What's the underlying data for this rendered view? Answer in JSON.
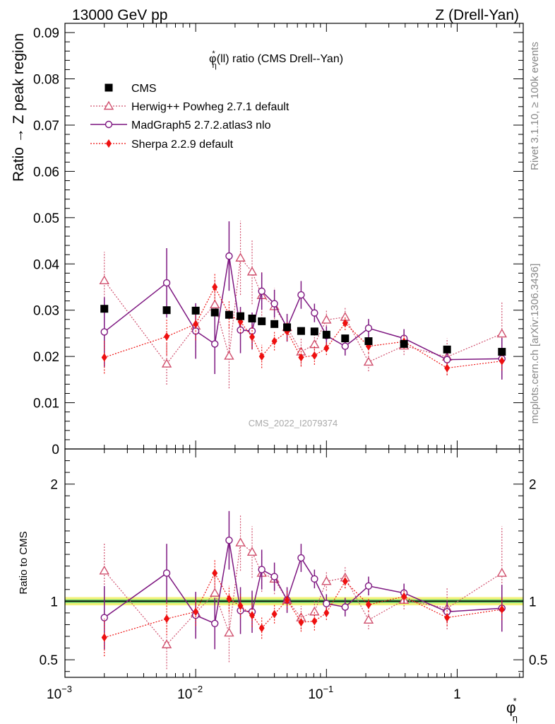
{
  "header": {
    "left": "13000 GeV pp",
    "right": "Z (Drell-Yan)"
  },
  "side_labels": {
    "rivet": "Rivet 3.1.10, ≥ 100k events",
    "mcplots": "mcplots.cern.ch [arXiv:1306.3436]"
  },
  "watermark": "CMS_2022_I2079374",
  "colors": {
    "cms": "#000000",
    "herwig": "#d0506e",
    "madgraph": "#7d1680",
    "sherpa": "#ee1010",
    "band_inner": "#6fd36f",
    "band_outer": "#f2f27a"
  },
  "chart_data": [
    {
      "type": "scatter",
      "title": "φ*η(ll) ratio (CMS Drell--Yan)",
      "title_parts": {
        "main": "φ",
        "sup": "*",
        "sub": "η",
        "rest": "(ll) ratio (CMS Drell--Yan)"
      },
      "ylabel": "Ratio → Z peak region",
      "xscale": "log",
      "xlim": [
        0.001,
        3.2
      ],
      "ylim": [
        0,
        0.092
      ],
      "yticks": [
        "0",
        "0.01",
        "0.02",
        "0.03",
        "0.04",
        "0.05",
        "0.06",
        "0.07",
        "0.08",
        "0.09"
      ],
      "ytick_values": [
        0,
        0.01,
        0.02,
        0.03,
        0.04,
        0.05,
        0.06,
        0.07,
        0.08,
        0.09
      ],
      "legend_position": "top-left",
      "x": [
        0.002,
        0.006,
        0.01,
        0.014,
        0.018,
        0.022,
        0.027,
        0.032,
        0.04,
        0.05,
        0.064,
        0.081,
        0.1,
        0.139,
        0.21,
        0.392,
        0.837,
        2.198
      ],
      "series": [
        {
          "name": "CMS",
          "marker": "square",
          "values": [
            0.0303,
            0.03,
            0.0299,
            0.0295,
            0.029,
            0.0287,
            0.0282,
            0.0276,
            0.027,
            0.0263,
            0.0255,
            0.0254,
            0.0247,
            0.0239,
            0.0233,
            0.0227,
            0.0215,
            0.021
          ],
          "errors": [
            0.0005,
            0.0005,
            0.0005,
            0.0005,
            0.0005,
            0.0005,
            0.0005,
            0.0005,
            0.0005,
            0.0005,
            0.0005,
            0.0005,
            0.0005,
            0.0005,
            0.0005,
            0.0005,
            0.0005,
            0.0005
          ]
        },
        {
          "name": "Herwig++ Powheg 2.7.1 default",
          "marker": "triangle",
          "values": [
            0.0364,
            0.0184,
            0.0266,
            0.0312,
            0.0201,
            0.0413,
            0.0383,
            0.0332,
            0.0308,
            0.0263,
            0.021,
            0.0226,
            0.0279,
            0.0285,
            0.0188,
            0.0223,
            0.0199,
            0.0249
          ],
          "errors": [
            0.0062,
            0.0045,
            0.0045,
            0.0055,
            0.007,
            0.008,
            0.007,
            0.005,
            0.004,
            0.003,
            0.003,
            0.003,
            0.002,
            0.002,
            0.002,
            0.002,
            0.004,
            0.007
          ]
        },
        {
          "name": "MadGraph5 2.7.2.atlas3 nlo",
          "marker": "circle",
          "values": [
            0.0253,
            0.0359,
            0.0255,
            0.0227,
            0.0417,
            0.0257,
            0.0255,
            0.0341,
            0.0314,
            0.0262,
            0.0333,
            0.0294,
            0.0245,
            0.0222,
            0.0261,
            0.0239,
            0.0193,
            0.0195
          ],
          "errors": [
            0.0075,
            0.0075,
            0.006,
            0.0065,
            0.0075,
            0.005,
            0.004,
            0.004,
            0.003,
            0.003,
            0.003,
            0.002,
            0.002,
            0.002,
            0.002,
            0.002,
            0.002,
            0.0045
          ]
        },
        {
          "name": "Sherpa 2.2.9 default",
          "marker": "diamond",
          "values": [
            0.0198,
            0.0243,
            0.027,
            0.035,
            0.0291,
            0.0275,
            0.0242,
            0.02,
            0.0233,
            0.0254,
            0.0198,
            0.0202,
            0.0218,
            0.0272,
            0.0222,
            0.0232,
            0.0175,
            0.019
          ],
          "errors": [
            0.0035,
            0.004,
            0.0035,
            0.003,
            0.003,
            0.0025,
            0.0025,
            0.0025,
            0.002,
            0.002,
            0.002,
            0.002,
            0.0015,
            0.0015,
            0.0015,
            0.0015,
            0.0015,
            0.002
          ]
        }
      ]
    },
    {
      "type": "scatter",
      "ylabel": "Ratio to CMS",
      "xlabel": "φ*η",
      "xlabel_parts": {
        "main": "φ",
        "sup": "*",
        "sub": "η"
      },
      "xscale": "log",
      "xlim": [
        0.001,
        3.2
      ],
      "xticks": [
        "10",
        "10",
        "10",
        "1"
      ],
      "xtick_exponents": [
        "−3",
        "−2",
        "−1",
        ""
      ],
      "xtick_values": [
        0.001,
        0.01,
        0.1,
        1
      ],
      "ylim": [
        0.35,
        2.3
      ],
      "yticks": [
        "0.5",
        "1",
        "2"
      ],
      "ytick_values": [
        0.5,
        1,
        2
      ],
      "reference_band": {
        "center": 1.0,
        "inner": [
          0.985,
          1.015
        ],
        "outer": [
          0.965,
          1.035
        ]
      },
      "x": [
        0.002,
        0.006,
        0.01,
        0.014,
        0.018,
        0.022,
        0.027,
        0.032,
        0.04,
        0.05,
        0.064,
        0.081,
        0.1,
        0.139,
        0.21,
        0.392,
        0.837,
        2.198
      ],
      "series": [
        {
          "name": "Herwig++ Powheg 2.7.1 default",
          "marker": "triangle",
          "values": [
            1.26,
            0.63,
            0.9,
            1.07,
            0.73,
            1.5,
            1.42,
            1.24,
            1.19,
            1.01,
            0.86,
            0.91,
            1.17,
            1.2,
            0.84,
            1.01,
            0.94,
            1.24
          ],
          "errors": [
            0.24,
            0.21,
            0.16,
            0.2,
            0.25,
            0.24,
            0.22,
            0.16,
            0.13,
            0.1,
            0.1,
            0.09,
            0.08,
            0.09,
            0.08,
            0.08,
            0.18,
            0.4
          ]
        },
        {
          "name": "MadGraph5 2.7.2.atlas3 nlo",
          "marker": "circle",
          "values": [
            0.86,
            1.24,
            0.88,
            0.81,
            1.52,
            0.92,
            0.91,
            1.27,
            1.21,
            1.01,
            1.37,
            1.19,
            0.98,
            0.95,
            1.13,
            1.07,
            0.91,
            0.94
          ],
          "errors": [
            0.27,
            0.25,
            0.2,
            0.22,
            0.25,
            0.2,
            0.18,
            0.17,
            0.12,
            0.11,
            0.12,
            0.08,
            0.08,
            0.08,
            0.08,
            0.08,
            0.09,
            0.2
          ]
        },
        {
          "name": "Sherpa 2.2.9 default",
          "marker": "diamond",
          "values": [
            0.69,
            0.85,
            0.91,
            1.24,
            1.02,
            0.96,
            0.88,
            0.77,
            0.89,
            1.01,
            0.82,
            0.83,
            0.9,
            1.17,
            0.97,
            1.04,
            0.86,
            0.93
          ],
          "errors": [
            0.16,
            0.14,
            0.12,
            0.12,
            0.11,
            0.1,
            0.1,
            0.09,
            0.08,
            0.08,
            0.08,
            0.08,
            0.06,
            0.06,
            0.06,
            0.06,
            0.07,
            0.09
          ]
        }
      ]
    }
  ]
}
